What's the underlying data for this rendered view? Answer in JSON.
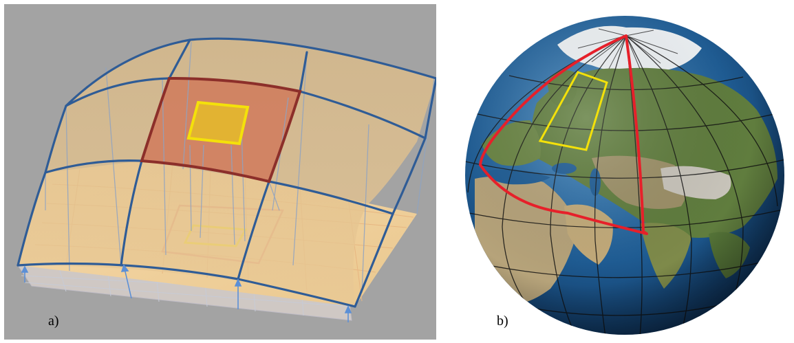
{
  "panels": [
    {
      "label": "a)"
    },
    {
      "label": "b)"
    }
  ],
  "colors": {
    "panel_a_background": "#a3a3a3",
    "floor_fill": "#f0cc96",
    "surface_fill": "#e6c48f",
    "grid_line": "#2f5c96",
    "highlight_cell": "#d67f60",
    "highlight_border": "#8c2f2a",
    "yellow_patch": "#f4e10a",
    "arrow_blue": "#5b8fd6",
    "globe_ocean": "#1f5d95",
    "land_green": "#5c7a3a",
    "red_outline": "#e6202a"
  }
}
